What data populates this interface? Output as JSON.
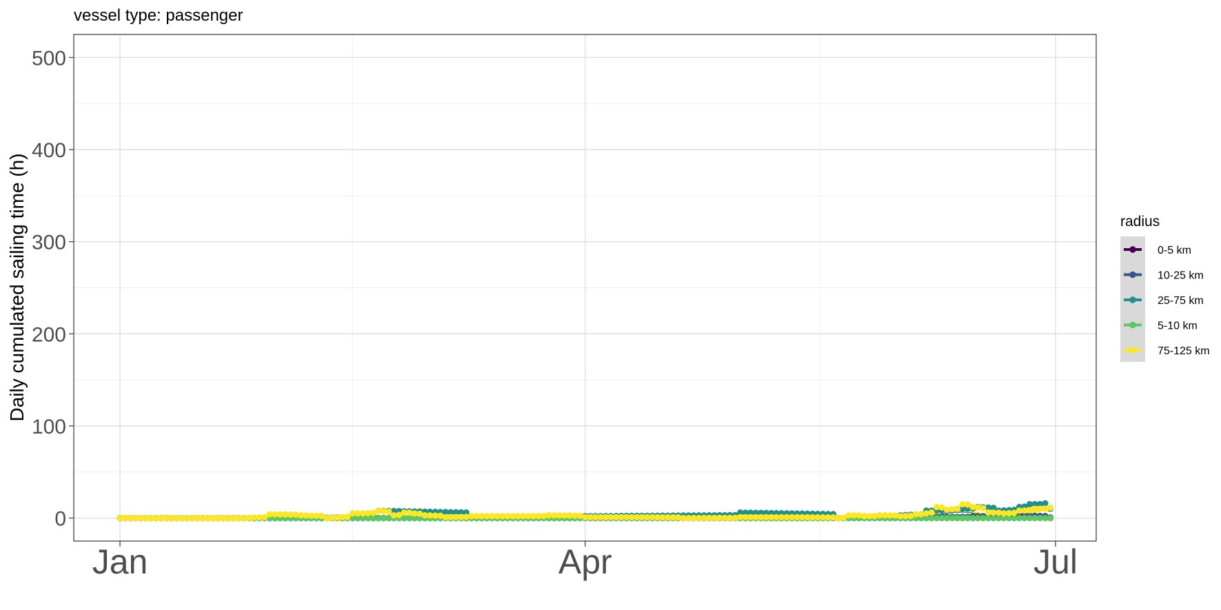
{
  "chart_data": {
    "type": "line",
    "title": "vessel type: passenger",
    "ylabel": "Daily cumulated sailing time (h)",
    "xlabel": "",
    "x_range": [
      "2023-01-01",
      "2023-07-01"
    ],
    "xticks": [
      {
        "date": "2023-01-01",
        "label": "Jan"
      },
      {
        "date": "2023-04-01",
        "label": "Apr"
      },
      {
        "date": "2023-07-01",
        "label": "Jul"
      }
    ],
    "ylim": [
      -25,
      525
    ],
    "yticks": [
      0,
      100,
      200,
      300,
      400,
      500
    ],
    "grid": true,
    "legend": {
      "title": "radius",
      "position": "right"
    },
    "series": [
      {
        "name": "0-5 km",
        "color": "#440154",
        "points": [
          [
            "2023-01-01",
            0
          ],
          [
            "2023-02-01",
            0
          ],
          [
            "2023-03-01",
            0
          ],
          [
            "2023-04-01",
            0
          ],
          [
            "2023-05-01",
            0
          ],
          [
            "2023-06-01",
            0
          ],
          [
            "2023-06-25",
            0.5
          ],
          [
            "2023-06-30",
            0.5
          ]
        ],
        "smooth": [
          [
            "2023-01-01",
            0
          ],
          [
            "2023-06-30",
            0.3
          ]
        ]
      },
      {
        "name": "10-25 km",
        "color": "#3B528B",
        "points": [
          [
            "2023-01-01",
            0
          ],
          [
            "2023-02-15",
            0
          ],
          [
            "2023-04-01",
            0
          ],
          [
            "2023-05-15",
            0
          ],
          [
            "2023-06-05",
            1
          ],
          [
            "2023-06-15",
            2
          ],
          [
            "2023-06-22",
            3
          ],
          [
            "2023-06-30",
            0
          ]
        ],
        "smooth": [
          [
            "2023-01-01",
            0
          ],
          [
            "2023-06-01",
            0
          ],
          [
            "2023-06-15",
            2
          ],
          [
            "2023-06-30",
            1.5
          ]
        ]
      },
      {
        "name": "25-75 km",
        "color": "#21908C",
        "points": [
          [
            "2023-01-01",
            0
          ],
          [
            "2023-01-20",
            0
          ],
          [
            "2023-02-08",
            0
          ],
          [
            "2023-02-20",
            8
          ],
          [
            "2023-03-10",
            1
          ],
          [
            "2023-04-01",
            2
          ],
          [
            "2023-05-01",
            6
          ],
          [
            "2023-05-20",
            0
          ],
          [
            "2023-06-01",
            3
          ],
          [
            "2023-06-06",
            8
          ],
          [
            "2023-06-12",
            10
          ],
          [
            "2023-06-16",
            12
          ],
          [
            "2023-06-20",
            8
          ],
          [
            "2023-06-24",
            12
          ],
          [
            "2023-06-26",
            15
          ],
          [
            "2023-06-29",
            16
          ],
          [
            "2023-06-30",
            10
          ]
        ],
        "smooth": [
          [
            "2023-01-01",
            0
          ],
          [
            "2023-05-28",
            0
          ],
          [
            "2023-06-06",
            3
          ],
          [
            "2023-06-13",
            7
          ],
          [
            "2023-06-19",
            2
          ],
          [
            "2023-06-25",
            8
          ],
          [
            "2023-06-30",
            9
          ]
        ]
      },
      {
        "name": "5-10 km",
        "color": "#5DC863",
        "points": [
          [
            "2023-01-01",
            0
          ],
          [
            "2023-02-01",
            0
          ],
          [
            "2023-03-01",
            0
          ],
          [
            "2023-04-01",
            0
          ],
          [
            "2023-05-01",
            0
          ],
          [
            "2023-06-01",
            0
          ],
          [
            "2023-06-20",
            0
          ],
          [
            "2023-06-30",
            0
          ]
        ],
        "smooth": [
          [
            "2023-01-01",
            0
          ],
          [
            "2023-06-30",
            0
          ]
        ]
      },
      {
        "name": "75-125 km",
        "color": "#FDE725",
        "points": [
          [
            "2023-01-01",
            0
          ],
          [
            "2023-01-05",
            0
          ],
          [
            "2023-01-10",
            0
          ],
          [
            "2023-01-15",
            0
          ],
          [
            "2023-01-20",
            0
          ],
          [
            "2023-01-25",
            0
          ],
          [
            "2023-01-30",
            4
          ],
          [
            "2023-02-05",
            3
          ],
          [
            "2023-02-10",
            0
          ],
          [
            "2023-02-15",
            5
          ],
          [
            "2023-02-17",
            5
          ],
          [
            "2023-02-20",
            8
          ],
          [
            "2023-02-23",
            3
          ],
          [
            "2023-02-25",
            6
          ],
          [
            "2023-02-27",
            5
          ],
          [
            "2023-03-01",
            3
          ],
          [
            "2023-03-05",
            1
          ],
          [
            "2023-03-10",
            2
          ],
          [
            "2023-03-15",
            2
          ],
          [
            "2023-03-20",
            2
          ],
          [
            "2023-03-25",
            3
          ],
          [
            "2023-04-01",
            1
          ],
          [
            "2023-04-10",
            1
          ],
          [
            "2023-04-20",
            0
          ],
          [
            "2023-05-01",
            1
          ],
          [
            "2023-05-10",
            1
          ],
          [
            "2023-05-20",
            0
          ],
          [
            "2023-05-22",
            3
          ],
          [
            "2023-05-25",
            2
          ],
          [
            "2023-05-28",
            3
          ],
          [
            "2023-06-01",
            2
          ],
          [
            "2023-06-04",
            4
          ],
          [
            "2023-06-06",
            5
          ],
          [
            "2023-06-08",
            12
          ],
          [
            "2023-06-10",
            9
          ],
          [
            "2023-06-13",
            15
          ],
          [
            "2023-06-15",
            12
          ],
          [
            "2023-06-18",
            6
          ],
          [
            "2023-06-21",
            5
          ],
          [
            "2023-06-24",
            8
          ],
          [
            "2023-06-27",
            10
          ],
          [
            "2023-06-30",
            11
          ]
        ],
        "smooth": [
          [
            "2023-01-01",
            0
          ],
          [
            "2023-01-28",
            0.5
          ],
          [
            "2023-02-20",
            2
          ],
          [
            "2023-03-10",
            1
          ],
          [
            "2023-04-01",
            0.5
          ],
          [
            "2023-05-01",
            0.5
          ],
          [
            "2023-05-25",
            1
          ],
          [
            "2023-06-05",
            4
          ],
          [
            "2023-06-13",
            8
          ],
          [
            "2023-06-19",
            3
          ],
          [
            "2023-06-25",
            6
          ],
          [
            "2023-06-30",
            9
          ]
        ]
      }
    ]
  }
}
